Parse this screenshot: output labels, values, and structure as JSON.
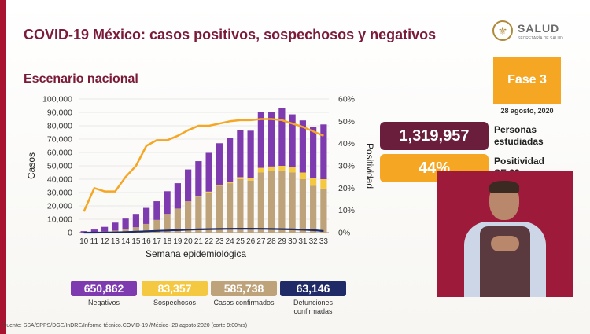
{
  "header": {
    "title": "COVID-19 México: casos positivos, sospechosos y negativos",
    "subtitle": "Escenario nacional",
    "logo_text": "SALUD",
    "logo_subtext": "SECRETARÍA DE SALUD"
  },
  "phase": {
    "label": "Fase 3",
    "date": "28 agosto, 2020"
  },
  "stats": [
    {
      "value": "1,319,957",
      "label": "Personas estudiadas",
      "color": "#6b1d3c"
    },
    {
      "value": "44%",
      "label": "Positividad SE 33",
      "color": "#f5a623"
    }
  ],
  "legend": [
    {
      "value": "650,862",
      "label": "Negativos",
      "color": "#7e3bb0"
    },
    {
      "value": "83,357",
      "label": "Sospechosos",
      "color": "#f5c842"
    },
    {
      "value": "585,738",
      "label": "Casos confirmados",
      "color": "#bda27a"
    },
    {
      "value": "63,146",
      "label": "Defunciones confirmadas",
      "color": "#1f2a66"
    }
  ],
  "source": "Fuente: SSA/SPPS/DGE/InDRE/Informe técnico.COVID-19 /México- 28 agosto 2020 (corte 9:00hrs)",
  "chart_data": {
    "type": "bar",
    "xlabel": "Semana epidemiológica",
    "ylabel": "Casos",
    "y2label": "Positividad",
    "ylim": [
      0,
      100000
    ],
    "y2lim": [
      0,
      60
    ],
    "yticks": [
      "0",
      "10,000",
      "20,000",
      "30,000",
      "40,000",
      "50,000",
      "60,000",
      "70,000",
      "80,000",
      "90,000",
      "100,000"
    ],
    "y2ticks": [
      "0%",
      "10%",
      "20%",
      "30%",
      "40%",
      "50%",
      "60%"
    ],
    "categories": [
      "10",
      "11",
      "12",
      "13",
      "14",
      "15",
      "16",
      "17",
      "18",
      "19",
      "20",
      "21",
      "22",
      "23",
      "24",
      "25",
      "26",
      "27",
      "28",
      "29",
      "30",
      "31",
      "32",
      "33"
    ],
    "series": [
      {
        "name": "Casos confirmados",
        "color": "#bda27a",
        "values": [
          100,
          300,
          800,
          1500,
          2500,
          4000,
          6500,
          9500,
          14000,
          18000,
          23000,
          27000,
          30000,
          35000,
          37000,
          40000,
          39000,
          45000,
          46000,
          46500,
          45000,
          40000,
          35000,
          33000
        ]
      },
      {
        "name": "Sospechosos",
        "color": "#f5c842",
        "values": [
          0,
          0,
          0,
          0,
          0,
          0,
          0,
          0,
          0,
          0,
          300,
          500,
          700,
          900,
          1000,
          1500,
          1800,
          3500,
          3500,
          3500,
          4000,
          5000,
          6000,
          7000
        ]
      },
      {
        "name": "Negativos",
        "color": "#7e3bb0",
        "values": [
          1000,
          2000,
          3500,
          6000,
          8000,
          10000,
          12000,
          14000,
          17000,
          19000,
          24000,
          26000,
          29000,
          31000,
          33000,
          35000,
          35500,
          41500,
          41000,
          43500,
          39500,
          39000,
          38000,
          41000
        ]
      },
      {
        "name": "Defunciones confirmadas",
        "type": "line",
        "color": "#1f2a66",
        "values": [
          0,
          0,
          50,
          200,
          400,
          700,
          1000,
          1300,
          1600,
          1800,
          2200,
          2400,
          2600,
          2700,
          2800,
          2900,
          2900,
          2800,
          2700,
          2600,
          2400,
          2200,
          1800,
          1200
        ]
      },
      {
        "name": "Positividad",
        "type": "line",
        "axis": "y2",
        "color": "#f5a623",
        "values": [
          9.5,
          20,
          18.5,
          18.5,
          25,
          30,
          39,
          41.5,
          41.5,
          43.5,
          46,
          48,
          48,
          49,
          50,
          50.5,
          50.5,
          51,
          51,
          50.5,
          49,
          47.5,
          45.5,
          43.5
        ]
      }
    ]
  }
}
